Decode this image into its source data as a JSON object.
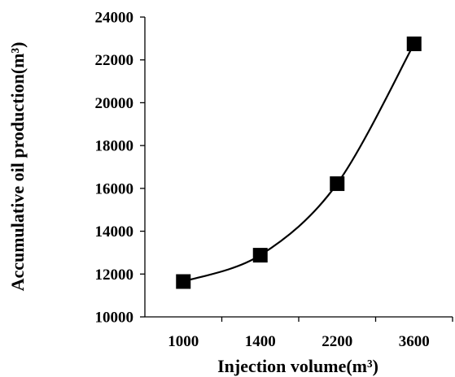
{
  "chart_data": {
    "type": "scatter",
    "title": "",
    "xlabel": "Injection volume(m³)",
    "ylabel": "Accumulative oil production(m³)",
    "categories": [
      "1000",
      "1400",
      "2200",
      "3600"
    ],
    "values": [
      11650,
      12880,
      16220,
      22750
    ],
    "ylim": [
      10000,
      24000
    ],
    "yticks": [
      "10000",
      "12000",
      "14000",
      "16000",
      "18000",
      "20000",
      "22000",
      "24000"
    ],
    "grid": false,
    "legend": "none",
    "marker": "square",
    "line": "smooth",
    "colors": {
      "series": "#000000",
      "axis": "#000000"
    }
  }
}
